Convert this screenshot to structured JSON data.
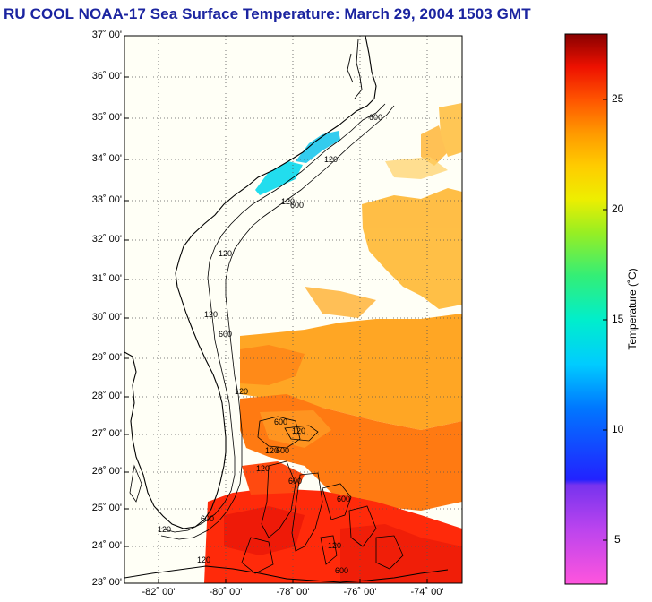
{
  "title": "RU COOL  NOAA-17  Sea Surface Temperature:  March 29, 2004 1503 GMT",
  "map": {
    "lat_labels": [
      "37˚ 00'",
      "36˚ 00'",
      "35˚ 00'",
      "34˚ 00'",
      "33˚ 00'",
      "32˚ 00'",
      "31˚ 00'",
      "30˚ 00'",
      "29˚ 00'",
      "28˚ 00'",
      "27˚ 00'",
      "26˚ 00'",
      "25˚ 00'",
      "24˚ 00'",
      "23˚ 00'"
    ],
    "lon_labels": [
      "-82˚ 00'",
      "-80˚ 00'",
      "-78˚ 00'",
      "-76˚ 00'",
      "-74˚ 00'"
    ],
    "lat_range": [
      23,
      37
    ],
    "lon_range": [
      -83,
      -73
    ],
    "isobath_labels": [
      "120",
      "600"
    ],
    "grid": true
  },
  "colorbar": {
    "label": "Temperature (˚C)",
    "ticks": [
      "25",
      "20",
      "15",
      "10",
      "5"
    ],
    "range": [
      3,
      28.5
    ],
    "colors": [
      "#ff44dd",
      "#cc55ee",
      "#8833ee",
      "#2222ff",
      "#0066ff",
      "#00bbff",
      "#00eedd",
      "#22ee88",
      "#88ee22",
      "#eeee00",
      "#ffcc00",
      "#ff9900",
      "#ff5500",
      "#ff1100",
      "#cc0000",
      "#880000"
    ]
  }
}
